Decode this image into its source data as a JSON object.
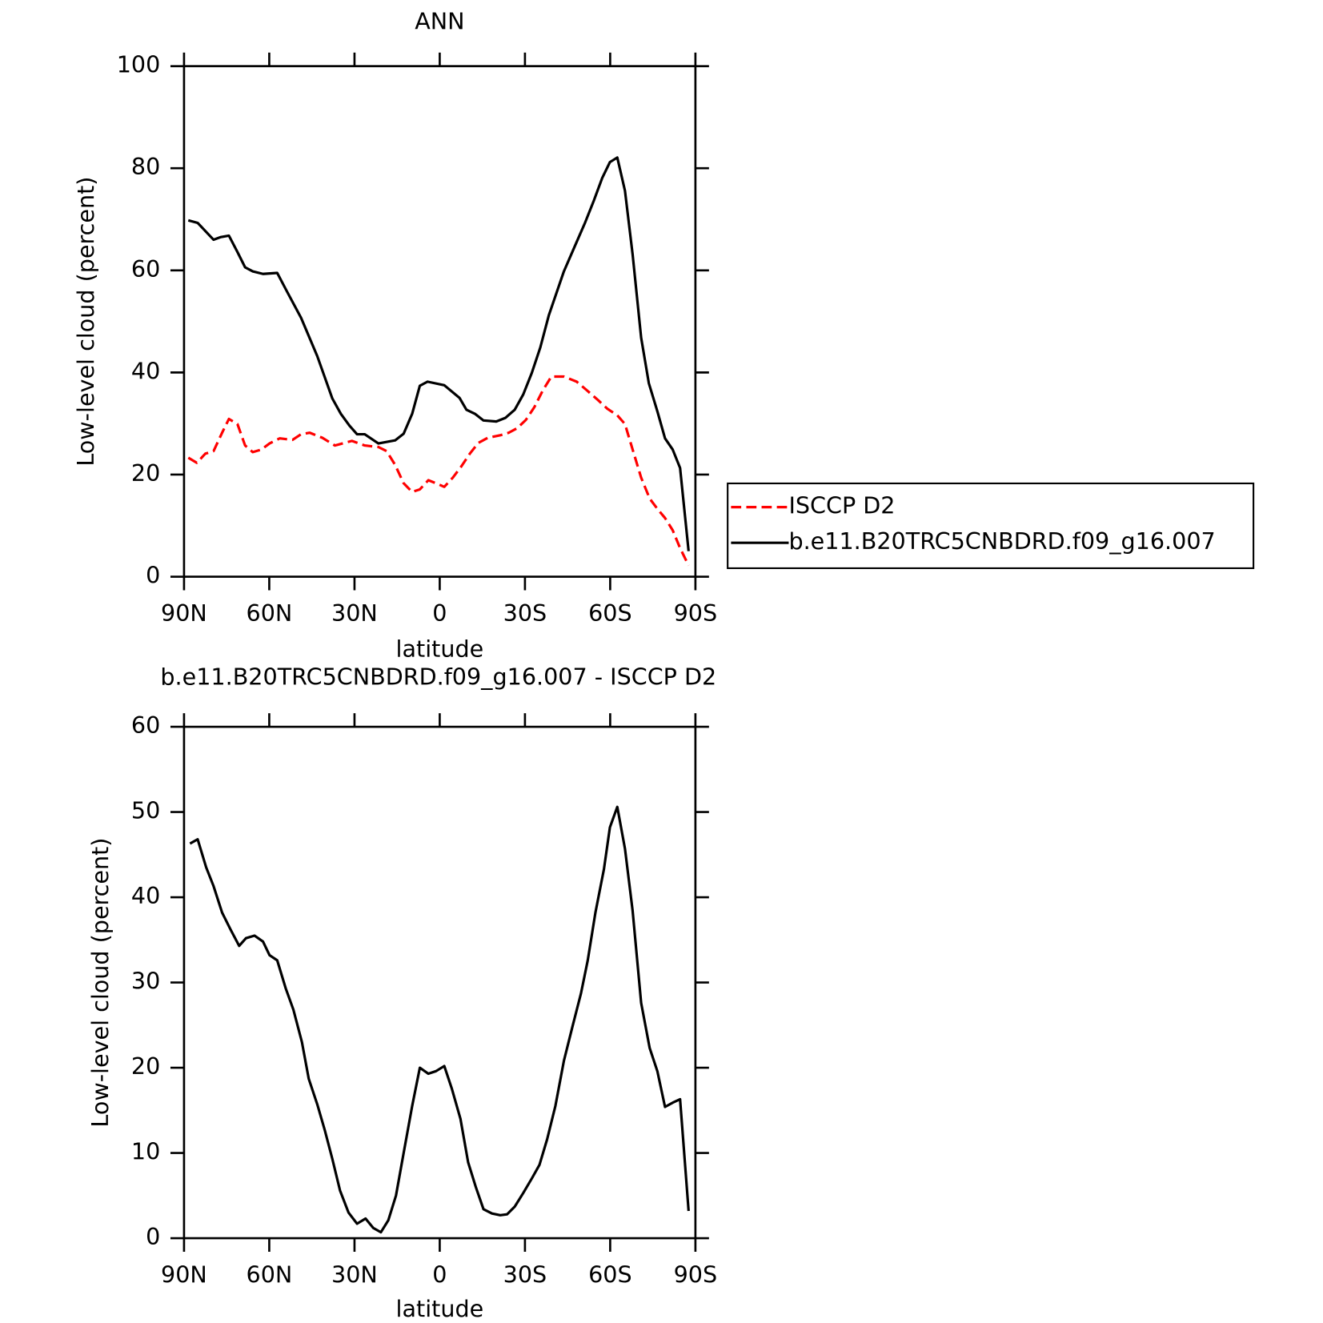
{
  "chart_data": [
    {
      "type": "line",
      "title": "ANN",
      "xlabel": "latitude",
      "ylabel": "Low-level cloud (percent)",
      "xlim": [
        90,
        -90
      ],
      "xticks": [
        {
          "value": 90,
          "label": "90N"
        },
        {
          "value": 60,
          "label": "60N"
        },
        {
          "value": 30,
          "label": "30N"
        },
        0,
        {
          "value": -30,
          "label": "30S"
        },
        {
          "value": -60,
          "label": "60S"
        },
        {
          "value": -90,
          "label": "90S"
        }
      ],
      "ylim": [
        0,
        100
      ],
      "yticks": [
        0,
        20,
        40,
        60,
        80,
        100
      ],
      "legend": "right",
      "series": [
        {
          "name": "ISCCP D2",
          "color": "#ff0000",
          "linestyle": "dashed",
          "x": [
            88.5,
            85.5,
            82.5,
            79.6,
            76.6,
            74.2,
            71.2,
            68.5,
            65.8,
            62.8,
            59.9,
            56.3,
            51.8,
            48.8,
            45.8,
            41.3,
            36.9,
            30.9,
            26.4,
            21.6,
            18.7,
            15.7,
            12.7,
            9.7,
            7.0,
            4.0,
            1.3,
            -1.6,
            -4.6,
            -7.6,
            -10.6,
            -13.6,
            -16.9,
            -21.3,
            -24.3,
            -27.3,
            -30.3,
            -33.3,
            -36.3,
            -39.3,
            -43.7,
            -48.2,
            -51.8,
            -55.7,
            -59.0,
            -62.5,
            -65.2,
            -67.9,
            -70.9,
            -73.9,
            -76.6,
            -79.3,
            -82.0,
            -84.6,
            -87.6
          ],
          "values": [
            23.3,
            22.3,
            24.1,
            24.6,
            28.2,
            30.9,
            29.9,
            25.7,
            24.4,
            24.9,
            26.1,
            27.1,
            26.8,
            27.9,
            28.2,
            27.2,
            25.7,
            26.6,
            25.7,
            25.4,
            24.6,
            21.9,
            18.3,
            16.6,
            17.1,
            18.9,
            18.3,
            17.6,
            19.4,
            21.6,
            24.1,
            26.2,
            27.2,
            27.7,
            28.2,
            29.1,
            30.7,
            33.2,
            36.5,
            39.2,
            39.2,
            38.2,
            36.5,
            34.6,
            32.9,
            31.6,
            29.9,
            24.9,
            19.4,
            15.3,
            13.3,
            11.5,
            9.1,
            5.6,
            2.2
          ]
        },
        {
          "name": "b.e11.B20TRC5CNBDRD.f09_g16.007",
          "color": "#000000",
          "linestyle": "solid",
          "x": [
            88.5,
            85.2,
            79.6,
            77.2,
            74.2,
            71.2,
            68.5,
            65.8,
            62.2,
            57.2,
            53.9,
            48.8,
            43.1,
            37.8,
            34.8,
            31.8,
            29.1,
            26.4,
            21.6,
            15.7,
            12.7,
            9.7,
            7.0,
            4.3,
            -1.6,
            -7.0,
            -9.4,
            -12.4,
            -15.4,
            -19.9,
            -23.1,
            -26.4,
            -29.4,
            -32.4,
            -35.4,
            -38.4,
            -43.7,
            -47.6,
            -51.2,
            -54.2,
            -57.2,
            -59.9,
            -62.5,
            -65.2,
            -67.9,
            -70.9,
            -73.6,
            -76.6,
            -79.3,
            -82.0,
            -84.6,
            -87.6
          ],
          "values": [
            69.8,
            69.3,
            66,
            66.5,
            66.8,
            63.6,
            60.6,
            59.8,
            59.3,
            59.5,
            56,
            50.7,
            43.2,
            34.9,
            31.9,
            29.6,
            27.9,
            27.9,
            26.1,
            26.7,
            28,
            31.9,
            37.4,
            38.2,
            37.5,
            35,
            32.7,
            31.9,
            30.6,
            30.4,
            31.1,
            32.7,
            35.7,
            39.9,
            44.9,
            51.2,
            59.8,
            64.8,
            69.4,
            73.6,
            78.1,
            81.2,
            82.1,
            75.6,
            63.1,
            46.8,
            37.9,
            32.4,
            27.1,
            24.9,
            21.3,
            5
          ]
        }
      ]
    },
    {
      "type": "line",
      "title": "b.e11.B20TRC5CNBDRD.f09_g16.007 - ISCCP D2",
      "xlabel": "latitude",
      "ylabel": "Low-level cloud (percent)",
      "xlim": [
        90,
        -90
      ],
      "xticks": [
        {
          "value": 90,
          "label": "90N"
        },
        {
          "value": 60,
          "label": "60N"
        },
        {
          "value": 30,
          "label": "30N"
        },
        0,
        {
          "value": -30,
          "label": "30S"
        },
        {
          "value": -60,
          "label": "60S"
        },
        {
          "value": -90,
          "label": "90S"
        }
      ],
      "ylim": [
        0,
        60
      ],
      "yticks": [
        0,
        10,
        20,
        30,
        40,
        50,
        60
      ],
      "series": [
        {
          "color": "#000000",
          "linestyle": "solid",
          "x": [
            87.9,
            85.2,
            82.2,
            79.6,
            76.6,
            73.6,
            70.6,
            68.2,
            65.2,
            62.2,
            59.9,
            57.2,
            54.2,
            51.5,
            48.5,
            46.1,
            43.1,
            40.4,
            37.8,
            35.1,
            32.1,
            29.1,
            26.1,
            23.4,
            20.7,
            18.1,
            15.4,
            12.7,
            9.7,
            7.0,
            4.0,
            1.3,
            -1.6,
            -4.3,
            -7.3,
            -10.0,
            -12.7,
            -15.4,
            -18.4,
            -21.3,
            -23.7,
            -26.4,
            -29.4,
            -32.4,
            -35.1,
            -37.8,
            -40.7,
            -43.7,
            -46.7,
            -49.7,
            -52.1,
            -54.8,
            -57.8,
            -59.9,
            -62.5,
            -65.2,
            -67.9,
            -70.9,
            -73.9,
            -76.6,
            -79.3,
            -82.0,
            -84.6,
            -87.6
          ],
          "values": [
            46.3,
            46.8,
            43.5,
            41.3,
            38.2,
            36.2,
            34.3,
            35.2,
            35.5,
            34.8,
            33.2,
            32.6,
            29.3,
            26.8,
            23,
            18.7,
            15.7,
            12.6,
            9.3,
            5.6,
            3,
            1.7,
            2.3,
            1.2,
            0.7,
            2.1,
            5,
            10,
            15.5,
            20,
            19.3,
            19.6,
            20.2,
            17.5,
            14,
            8.9,
            6,
            3.4,
            2.9,
            2.7,
            2.8,
            3.7,
            5.3,
            7,
            8.6,
            11.6,
            15.5,
            20.8,
            24.8,
            28.7,
            32.6,
            38.2,
            43.3,
            48.2,
            50.6,
            45.7,
            38.4,
            27.6,
            22.3,
            19.6,
            15.4,
            15.9,
            16.3,
            3.2
          ]
        }
      ]
    }
  ]
}
